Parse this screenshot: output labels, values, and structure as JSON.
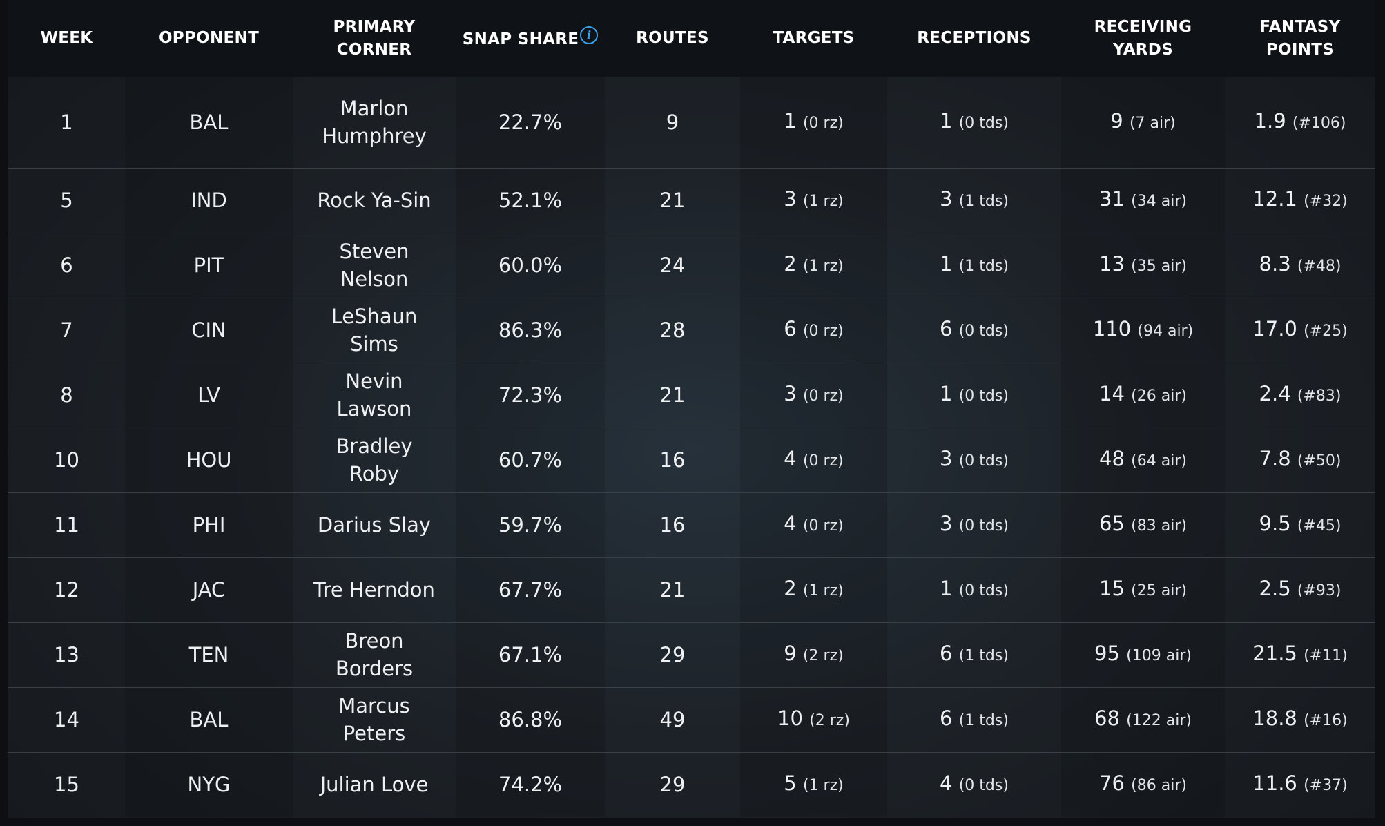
{
  "headers": {
    "week": "WEEK",
    "opponent": "OPPONENT",
    "primary_corner": "PRIMARY CORNER",
    "snap_share": "SNAP SHARE",
    "routes": "ROUTES",
    "targets": "TARGETS",
    "receptions": "RECEPTIONS",
    "receiving_yards": "RECEIVING YARDS",
    "fantasy_points_line1": "FANTASY",
    "fantasy_points_line2": "POINTS"
  },
  "info_icon": {
    "name": "info-icon",
    "glyph": "i",
    "color": "#3aa0e8"
  },
  "rows": [
    {
      "week": "1",
      "opponent": "BAL",
      "corner": "Marlon Humphrey",
      "snap": "22.7%",
      "routes": "9",
      "targets": "1",
      "targets_sub": "(0 rz)",
      "rec": "1",
      "rec_sub": "(0 tds)",
      "yds": "9",
      "yds_sub": "(7 air)",
      "pts": "1.9",
      "pts_sub": "(#106)"
    },
    {
      "week": "5",
      "opponent": "IND",
      "corner": "Rock Ya-Sin",
      "snap": "52.1%",
      "routes": "21",
      "targets": "3",
      "targets_sub": "(1 rz)",
      "rec": "3",
      "rec_sub": "(1 tds)",
      "yds": "31",
      "yds_sub": "(34 air)",
      "pts": "12.1",
      "pts_sub": "(#32)"
    },
    {
      "week": "6",
      "opponent": "PIT",
      "corner": "Steven Nelson",
      "snap": "60.0%",
      "routes": "24",
      "targets": "2",
      "targets_sub": "(1 rz)",
      "rec": "1",
      "rec_sub": "(1 tds)",
      "yds": "13",
      "yds_sub": "(35 air)",
      "pts": "8.3",
      "pts_sub": "(#48)"
    },
    {
      "week": "7",
      "opponent": "CIN",
      "corner": "LeShaun Sims",
      "snap": "86.3%",
      "routes": "28",
      "targets": "6",
      "targets_sub": "(0 rz)",
      "rec": "6",
      "rec_sub": "(0 tds)",
      "yds": "110",
      "yds_sub": "(94 air)",
      "pts": "17.0",
      "pts_sub": "(#25)"
    },
    {
      "week": "8",
      "opponent": "LV",
      "corner": "Nevin Lawson",
      "snap": "72.3%",
      "routes": "21",
      "targets": "3",
      "targets_sub": "(0 rz)",
      "rec": "1",
      "rec_sub": "(0 tds)",
      "yds": "14",
      "yds_sub": "(26 air)",
      "pts": "2.4",
      "pts_sub": "(#83)"
    },
    {
      "week": "10",
      "opponent": "HOU",
      "corner": "Bradley Roby",
      "snap": "60.7%",
      "routes": "16",
      "targets": "4",
      "targets_sub": "(0 rz)",
      "rec": "3",
      "rec_sub": "(0 tds)",
      "yds": "48",
      "yds_sub": "(64 air)",
      "pts": "7.8",
      "pts_sub": "(#50)"
    },
    {
      "week": "11",
      "opponent": "PHI",
      "corner": "Darius Slay",
      "snap": "59.7%",
      "routes": "16",
      "targets": "4",
      "targets_sub": "(0 rz)",
      "rec": "3",
      "rec_sub": "(0 tds)",
      "yds": "65",
      "yds_sub": "(83 air)",
      "pts": "9.5",
      "pts_sub": "(#45)"
    },
    {
      "week": "12",
      "opponent": "JAC",
      "corner": "Tre Herndon",
      "snap": "67.7%",
      "routes": "21",
      "targets": "2",
      "targets_sub": "(1 rz)",
      "rec": "1",
      "rec_sub": "(0 tds)",
      "yds": "15",
      "yds_sub": "(25 air)",
      "pts": "2.5",
      "pts_sub": "(#93)"
    },
    {
      "week": "13",
      "opponent": "TEN",
      "corner": "Breon Borders",
      "snap": "67.1%",
      "routes": "29",
      "targets": "9",
      "targets_sub": "(2 rz)",
      "rec": "6",
      "rec_sub": "(1 tds)",
      "yds": "95",
      "yds_sub": "(109 air)",
      "pts": "21.5",
      "pts_sub": "(#11)"
    },
    {
      "week": "14",
      "opponent": "BAL",
      "corner": "Marcus Peters",
      "snap": "86.8%",
      "routes": "49",
      "targets": "10",
      "targets_sub": "(2 rz)",
      "rec": "6",
      "rec_sub": "(1 tds)",
      "yds": "68",
      "yds_sub": "(122 air)",
      "pts": "18.8",
      "pts_sub": "(#16)"
    },
    {
      "week": "15",
      "opponent": "NYG",
      "corner": "Julian Love",
      "snap": "74.2%",
      "routes": "29",
      "targets": "5",
      "targets_sub": "(1 rz)",
      "rec": "4",
      "rec_sub": "(0 tds)",
      "yds": "76",
      "yds_sub": "(86 air)",
      "pts": "11.6",
      "pts_sub": "(#37)"
    }
  ]
}
